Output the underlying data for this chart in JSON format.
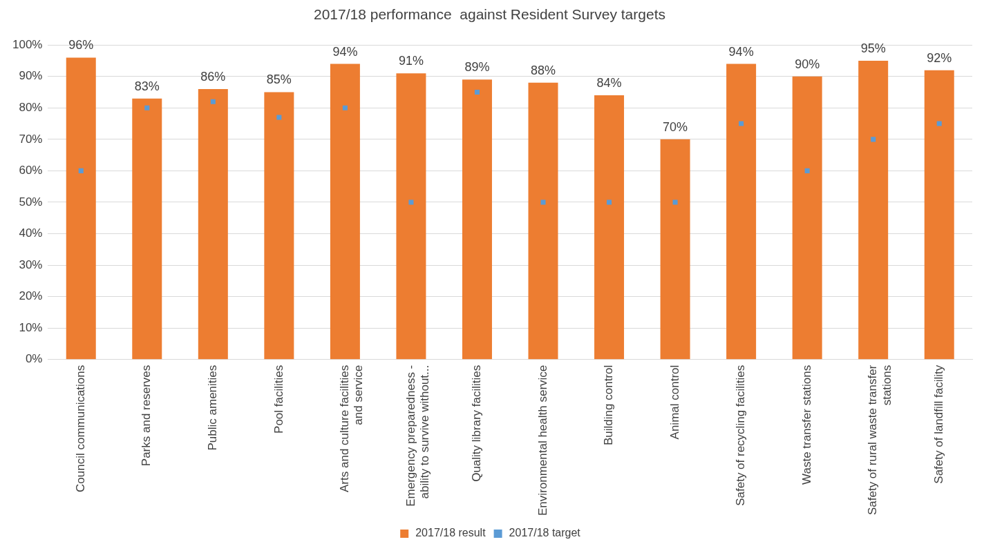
{
  "chart_data": {
    "type": "bar",
    "title": "2017/18 performance  against Resident Survey targets",
    "categories": [
      "Council communications",
      "Parks and reserves",
      "Public amenities",
      "Pool facilities",
      "Arts and culture facilities and service",
      "Emergency preparedness - ability to survive without...",
      "Quality library facilities",
      "Environmental health service",
      "Building control",
      "Animal control",
      "Safety of recycling facilities",
      "Waste transfer stations",
      "Safety of rural waste transfer stations",
      "Safety of landfill facility"
    ],
    "series": [
      {
        "name": "2017/18 result",
        "color": "#ed7d31",
        "values": [
          96,
          83,
          86,
          85,
          94,
          91,
          89,
          88,
          84,
          70,
          94,
          90,
          95,
          92
        ],
        "value_labels": [
          "96%",
          "83%",
          "86%",
          "85%",
          "94%",
          "91%",
          "89%",
          "88%",
          "84%",
          "70%",
          "94%",
          "90%",
          "95%",
          "92%"
        ]
      },
      {
        "name": "2017/18 target",
        "type": "scatter",
        "color": "#5b9bd5",
        "x": [
          "Council communications",
          "Parks and reserves",
          "Public amenities",
          "Pool facilities",
          "Arts and culture facilities and service",
          "Emergency preparedness - ability to survive without...",
          "Quality library facilities",
          "Environmental health service",
          "Building control",
          "Animal control",
          "Safety of recycling facilities",
          "Waste transfer stations",
          "Safety of rural waste transfer stations",
          "Safety of landfill facility"
        ],
        "values": [
          60,
          80,
          82,
          77,
          80,
          50,
          85,
          50,
          50,
          50,
          75,
          60,
          70,
          75
        ]
      }
    ],
    "ylim": [
      0,
      100
    ],
    "yticks": [
      {
        "value": 0,
        "label": "0%"
      },
      {
        "value": 10,
        "label": "10%"
      },
      {
        "value": 20,
        "label": "20%"
      },
      {
        "value": 30,
        "label": "30%"
      },
      {
        "value": 40,
        "label": "40%"
      },
      {
        "value": 50,
        "label": "50%"
      },
      {
        "value": 60,
        "label": "60%"
      },
      {
        "value": 70,
        "label": "70%"
      },
      {
        "value": 80,
        "label": "80%"
      },
      {
        "value": 90,
        "label": "90%"
      },
      {
        "value": 100,
        "label": "100%"
      }
    ],
    "grid": "y",
    "legend": "bottom",
    "marker": "square"
  }
}
